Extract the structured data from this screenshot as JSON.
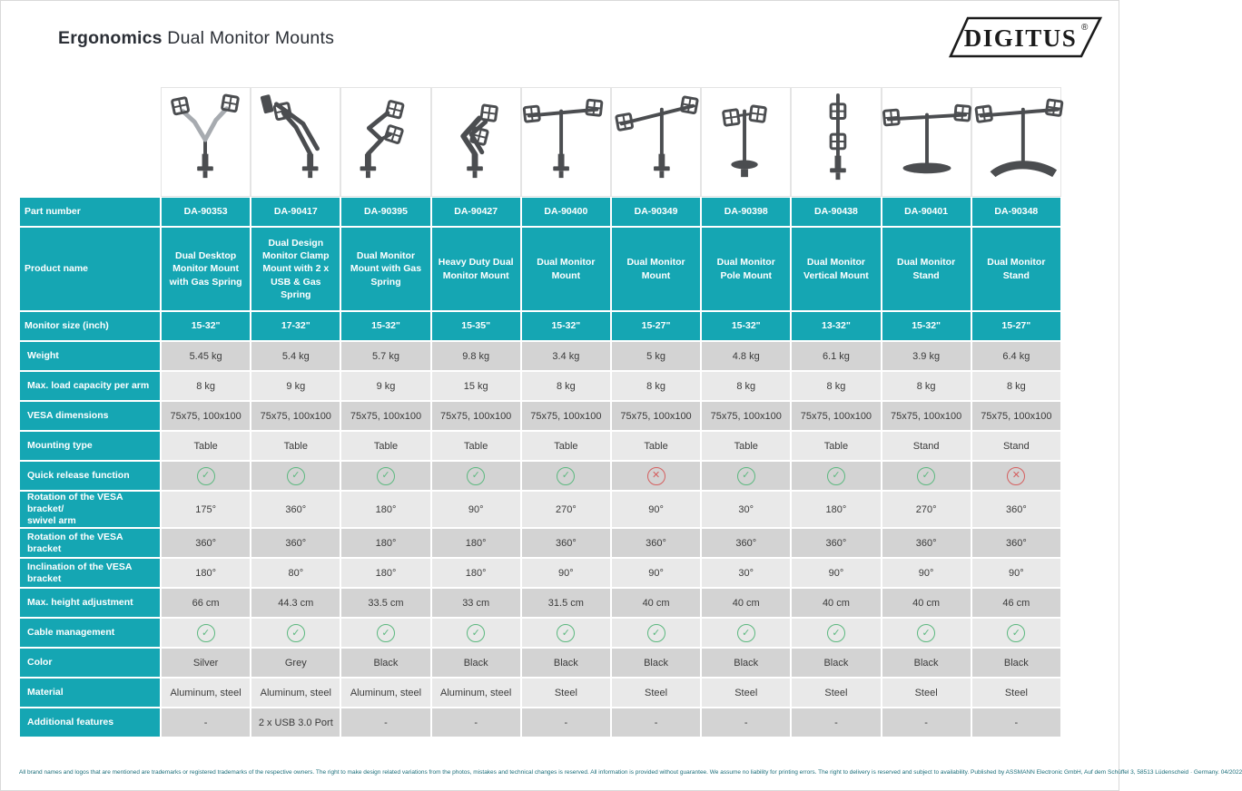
{
  "header": {
    "title_bold": "Ergonomics",
    "title_rest": " Dual Monitor Mounts",
    "brand": "DIGITUS",
    "brand_reg": "®"
  },
  "colors": {
    "teal": "#15a6b3",
    "row_dark": "#d3d3d3",
    "row_light": "#e9e9e9",
    "check_green": "#5cb87f",
    "cross_red": "#d45f5f"
  },
  "icons": {
    "check_glyph": "✓",
    "cross_glyph": "✕"
  },
  "table": {
    "row_labels": {
      "part_number": "Part number",
      "product_name": "Product name",
      "monitor_size": "Monitor size (inch)",
      "weight": "Weight",
      "max_load": "Max. load capacity per arm",
      "vesa": "VESA dimensions",
      "mounting": "Mounting type",
      "quick_release": "Quick release function",
      "rotation_swivel": "Rotation of the VESA bracket/\nswivel arm",
      "rotation_bracket": "Rotation of the VESA bracket",
      "inclination": "Inclination of the VESA bracket",
      "height": "Max. height adjustment",
      "cable": "Cable management",
      "color": "Color",
      "material": "Material",
      "features": "Additional features"
    },
    "products": [
      {
        "part_number": "DA-90353",
        "product_name": "Dual Desktop Monitor Mount with Gas Spring",
        "monitor_size": "15-32\"",
        "weight": "5.45 kg",
        "max_load": "8 kg",
        "vesa": "75x75, 100x100",
        "mounting": "Table",
        "quick_release": true,
        "rotation_swivel": "175°",
        "rotation_bracket": "360°",
        "inclination": "180°",
        "height": "66 cm",
        "cable": true,
        "color": "Silver",
        "material": "Aluminum, steel",
        "features": "-"
      },
      {
        "part_number": "DA-90417",
        "product_name": "Dual Design Monitor Clamp Mount with 2 x USB & Gas Spring",
        "monitor_size": "17-32\"",
        "weight": "5.4 kg",
        "max_load": "9 kg",
        "vesa": "75x75, 100x100",
        "mounting": "Table",
        "quick_release": true,
        "rotation_swivel": "360°",
        "rotation_bracket": "360°",
        "inclination": "80°",
        "height": "44.3 cm",
        "cable": true,
        "color": "Grey",
        "material": "Aluminum, steel",
        "features": "2 x USB 3.0 Port"
      },
      {
        "part_number": "DA-90395",
        "product_name": "Dual Monitor Mount with Gas Spring",
        "monitor_size": "15-32\"",
        "weight": "5.7 kg",
        "max_load": "9 kg",
        "vesa": "75x75, 100x100",
        "mounting": "Table",
        "quick_release": true,
        "rotation_swivel": "180°",
        "rotation_bracket": "180°",
        "inclination": "180°",
        "height": "33.5 cm",
        "cable": true,
        "color": "Black",
        "material": "Aluminum, steel",
        "features": "-"
      },
      {
        "part_number": "DA-90427",
        "product_name": "Heavy Duty Dual Monitor Mount",
        "monitor_size": "15-35\"",
        "weight": "9.8 kg",
        "max_load": "15 kg",
        "vesa": "75x75, 100x100",
        "mounting": "Table",
        "quick_release": true,
        "rotation_swivel": "90°",
        "rotation_bracket": "180°",
        "inclination": "180°",
        "height": "33 cm",
        "cable": true,
        "color": "Black",
        "material": "Aluminum, steel",
        "features": "-"
      },
      {
        "part_number": "DA-90400",
        "product_name": "Dual Monitor Mount",
        "monitor_size": "15-32\"",
        "weight": "3.4 kg",
        "max_load": "8 kg",
        "vesa": "75x75, 100x100",
        "mounting": "Table",
        "quick_release": true,
        "rotation_swivel": "270°",
        "rotation_bracket": "360°",
        "inclination": "90°",
        "height": "31.5 cm",
        "cable": true,
        "color": "Black",
        "material": "Steel",
        "features": "-"
      },
      {
        "part_number": "DA-90349",
        "product_name": "Dual Monitor Mount",
        "monitor_size": "15-27\"",
        "weight": "5 kg",
        "max_load": "8 kg",
        "vesa": "75x75, 100x100",
        "mounting": "Table",
        "quick_release": false,
        "rotation_swivel": "90°",
        "rotation_bracket": "360°",
        "inclination": "90°",
        "height": "40 cm",
        "cable": true,
        "color": "Black",
        "material": "Steel",
        "features": "-"
      },
      {
        "part_number": "DA-90398",
        "product_name": "Dual Monitor Pole Mount",
        "monitor_size": "15-32\"",
        "weight": "4.8 kg",
        "max_load": "8 kg",
        "vesa": "75x75, 100x100",
        "mounting": "Table",
        "quick_release": true,
        "rotation_swivel": "30°",
        "rotation_bracket": "360°",
        "inclination": "30°",
        "height": "40 cm",
        "cable": true,
        "color": "Black",
        "material": "Steel",
        "features": "-"
      },
      {
        "part_number": "DA-90438",
        "product_name": "Dual Monitor Vertical Mount",
        "monitor_size": "13-32\"",
        "weight": "6.1 kg",
        "max_load": "8 kg",
        "vesa": "75x75, 100x100",
        "mounting": "Table",
        "quick_release": true,
        "rotation_swivel": "180°",
        "rotation_bracket": "360°",
        "inclination": "90°",
        "height": "40 cm",
        "cable": true,
        "color": "Black",
        "material": "Steel",
        "features": "-"
      },
      {
        "part_number": "DA-90401",
        "product_name": "Dual Monitor Stand",
        "monitor_size": "15-32\"",
        "weight": "3.9 kg",
        "max_load": "8 kg",
        "vesa": "75x75, 100x100",
        "mounting": "Stand",
        "quick_release": true,
        "rotation_swivel": "270°",
        "rotation_bracket": "360°",
        "inclination": "90°",
        "height": "40 cm",
        "cable": true,
        "color": "Black",
        "material": "Steel",
        "features": "-"
      },
      {
        "part_number": "DA-90348",
        "product_name": "Dual Monitor Stand",
        "monitor_size": "15-27\"",
        "weight": "6.4 kg",
        "max_load": "8 kg",
        "vesa": "75x75, 100x100",
        "mounting": "Stand",
        "quick_release": false,
        "rotation_swivel": "360°",
        "rotation_bracket": "360°",
        "inclination": "90°",
        "height": "46 cm",
        "cable": true,
        "color": "Black",
        "material": "Steel",
        "features": "-"
      }
    ]
  },
  "footer": {
    "text": "All brand names and logos that are mentioned are trademarks or registered trademarks of the respective owners. The right to make design related variations from the photos, mistakes and technical changes is reserved. All information is provided without guarantee. We assume no liability for printing errors. The right to delivery is reserved and subject to availability. Published by ASSMANN Electronic GmbH, Auf dem Schüffel 3, 58513 Lüdenscheid · Germany. 04/2022"
  }
}
